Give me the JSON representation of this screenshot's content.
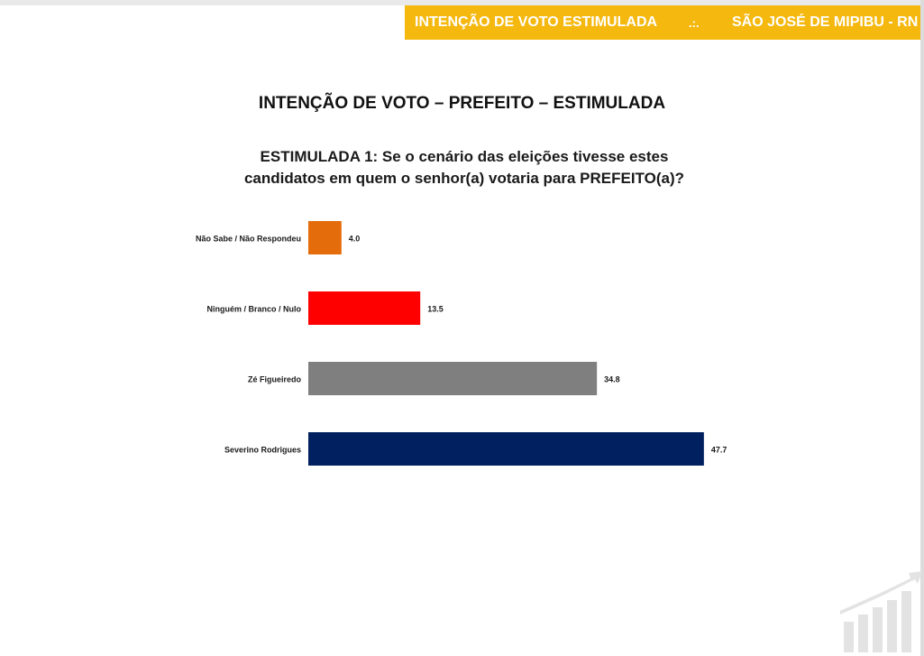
{
  "header": {
    "left_text": "INTENÇÃO DE VOTO ESTIMULADA",
    "separator": ".:.",
    "right_text": "SÃO JOSÉ DE MIPIBU - RN",
    "color": "#f5b80f"
  },
  "slide_title": "INTENÇÃO DE VOTO – PREFEITO – ESTIMULADA",
  "question": {
    "line1": "ESTIMULADA 1: Se o cenário das eleições tivesse estes",
    "line2": "candidatos em quem o senhor(a) votaria para PREFEITO(a)?"
  },
  "chart_data": {
    "type": "bar",
    "orientation": "horizontal",
    "categories": [
      "Não Sabe / Não Respondeu",
      "Ninguém / Branco / Nulo",
      "Zé Figueiredo",
      "Severino Rodrigues"
    ],
    "values": [
      4.0,
      13.5,
      34.8,
      47.7
    ],
    "value_labels": [
      "4.0",
      "13.5",
      "34.8",
      "47.7"
    ],
    "colors": [
      "#e46c0a",
      "#ff0000",
      "#7f7f7f",
      "#002060"
    ],
    "title": "",
    "xlabel": "",
    "ylabel": "",
    "grid": false,
    "legend": "none"
  },
  "logo_icon": "growth-chart-logo-icon"
}
